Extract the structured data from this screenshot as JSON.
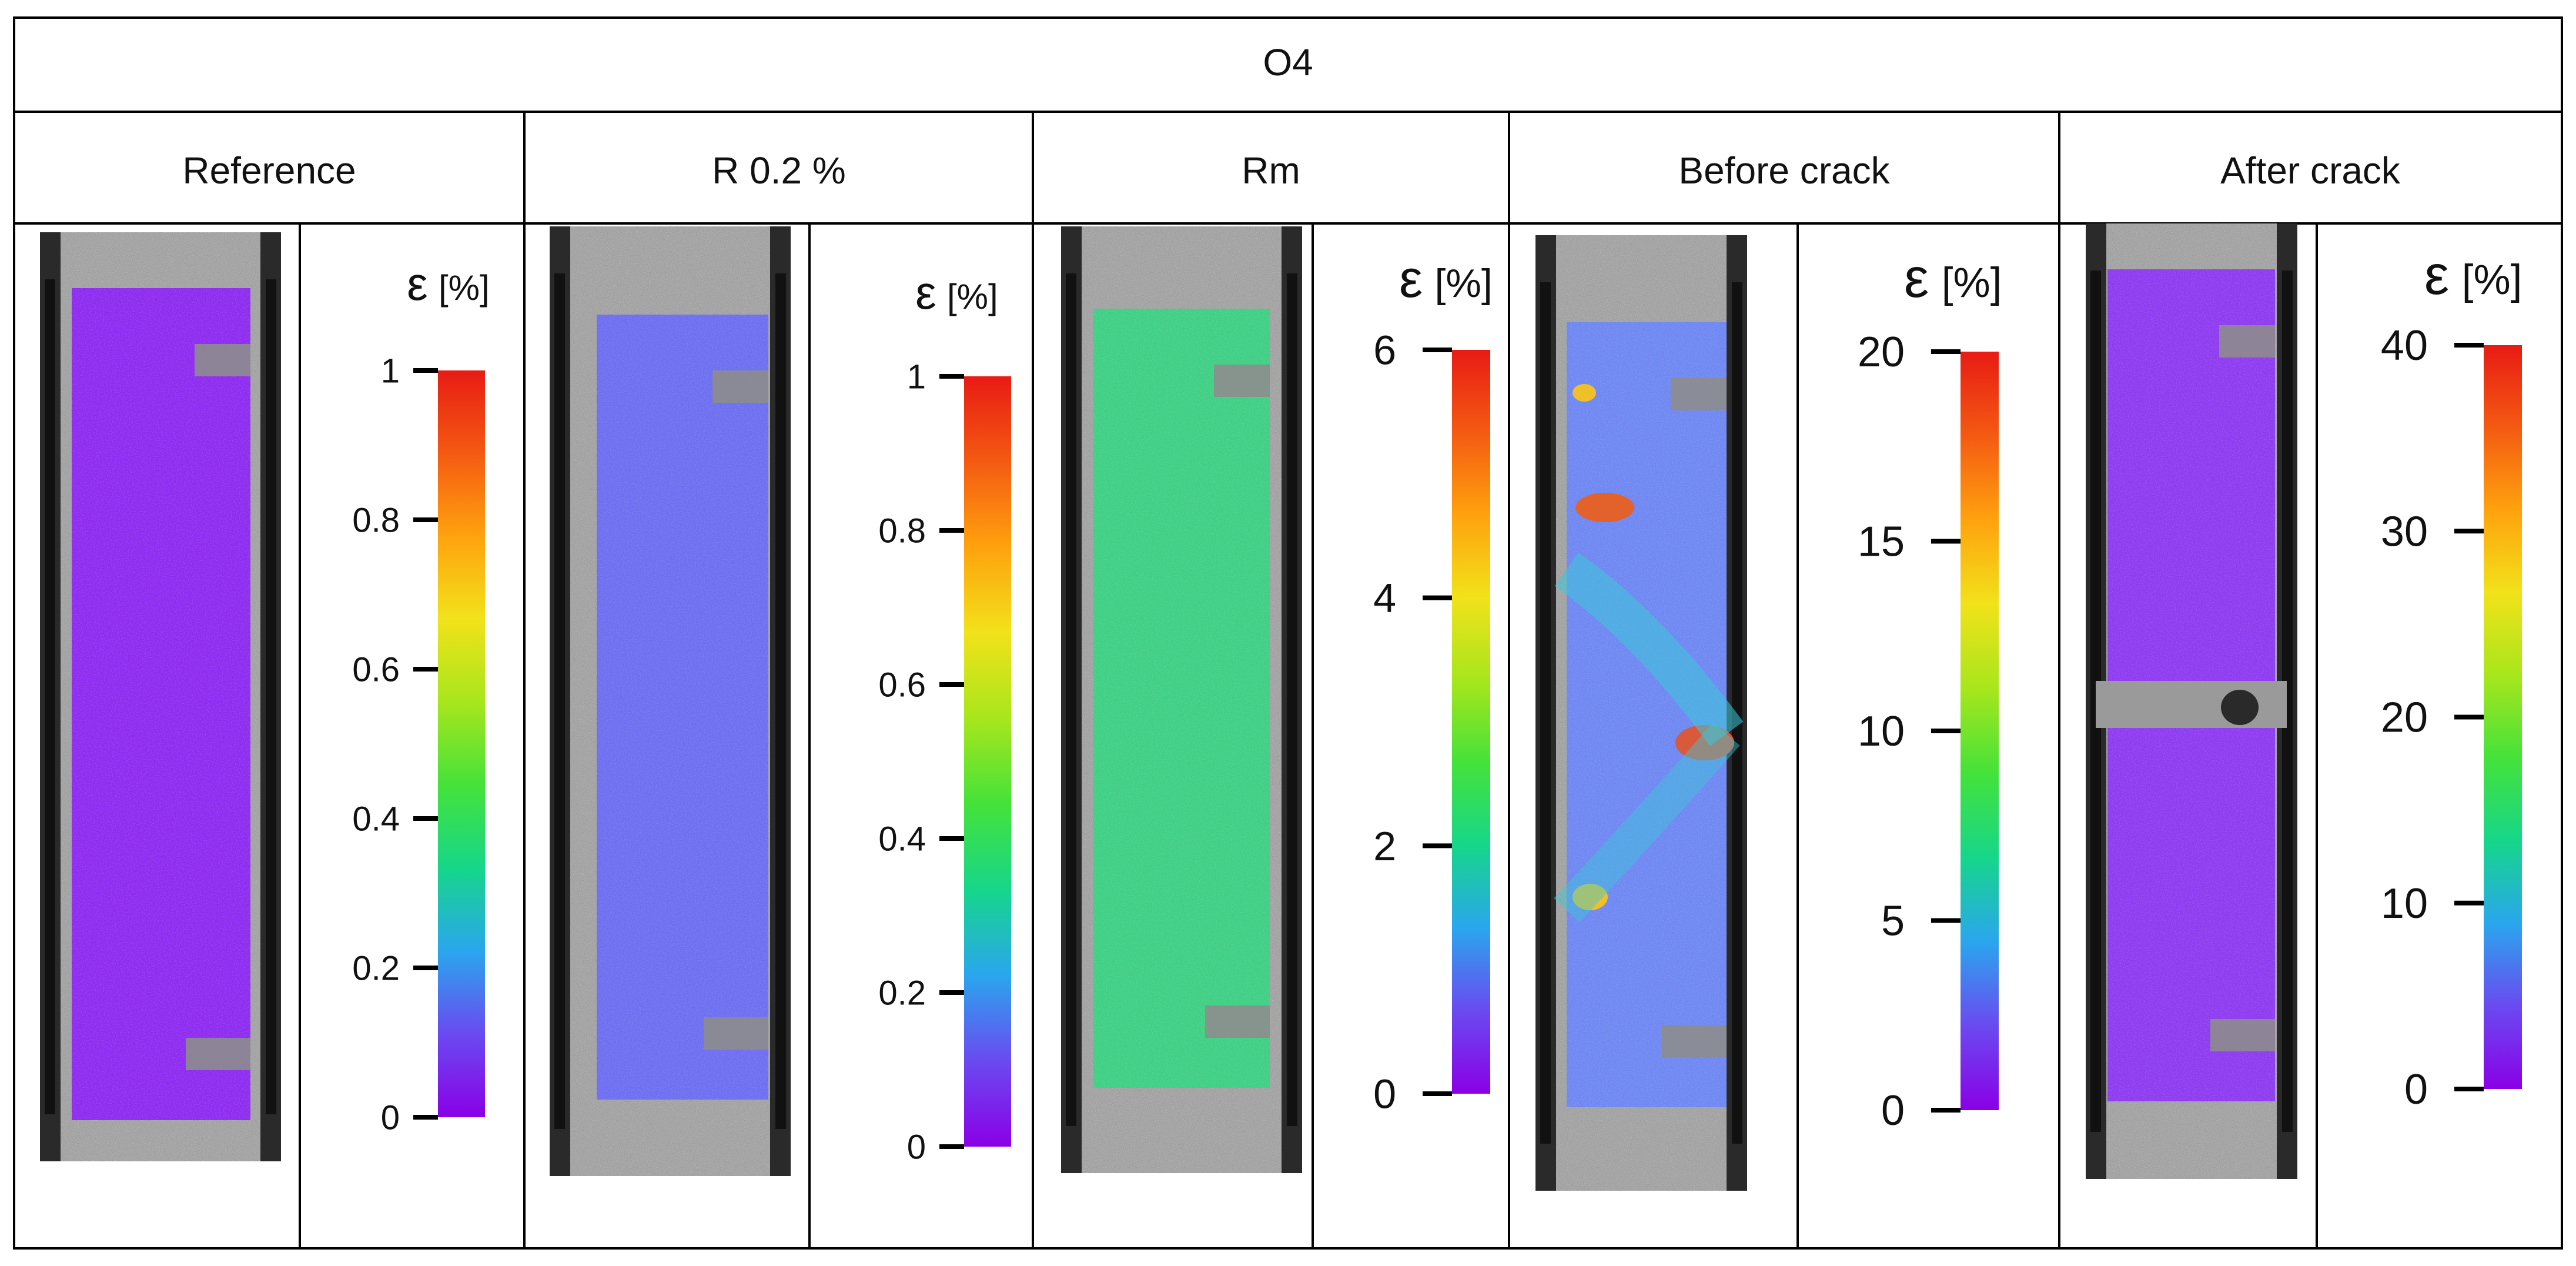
{
  "table": {
    "title": "O4",
    "panels": [
      {
        "label": "Reference",
        "symbol": "ε",
        "unit": "[%]",
        "ticks": [
          "0",
          "0.2",
          "0.4",
          "0.6",
          "0.8",
          "1"
        ],
        "field": "reference"
      },
      {
        "label": "R 0.2 %",
        "symbol": "ε",
        "unit": "[%]",
        "ticks": [
          "0",
          "0.2",
          "0.4",
          "0.6",
          "0.8",
          "1"
        ],
        "field": "r02"
      },
      {
        "label": "Rm",
        "symbol": "ε",
        "unit": "[%]",
        "ticks": [
          "0",
          "2",
          "4",
          "6"
        ],
        "field": "rm"
      },
      {
        "label": "Before crack",
        "symbol": "ε",
        "unit": "[%]",
        "ticks": [
          "0",
          "5",
          "10",
          "15",
          "20"
        ],
        "field": "before"
      },
      {
        "label": "After crack",
        "symbol": "ε",
        "unit": "[%]",
        "ticks": [
          "0",
          "10",
          "20",
          "30",
          "40"
        ],
        "field": "after"
      }
    ]
  },
  "colors": {
    "colormap": [
      "#8a00e6",
      "#6a4af0",
      "#2aa6ee",
      "#16d68a",
      "#44e23a",
      "#a8e61c",
      "#f2e21a",
      "#ffa20e",
      "#f45a12",
      "#e81b14"
    ],
    "reference_field": "#8e2cf0",
    "r02_field": "#6d6ff0",
    "rm_field": "#40cf85",
    "before_field": "#6f88f2",
    "after_field": "#8e3cf0",
    "specimen_grip": "#9a9a9a",
    "background_dark": "#2a2a2a",
    "grid_line": "#000000"
  }
}
